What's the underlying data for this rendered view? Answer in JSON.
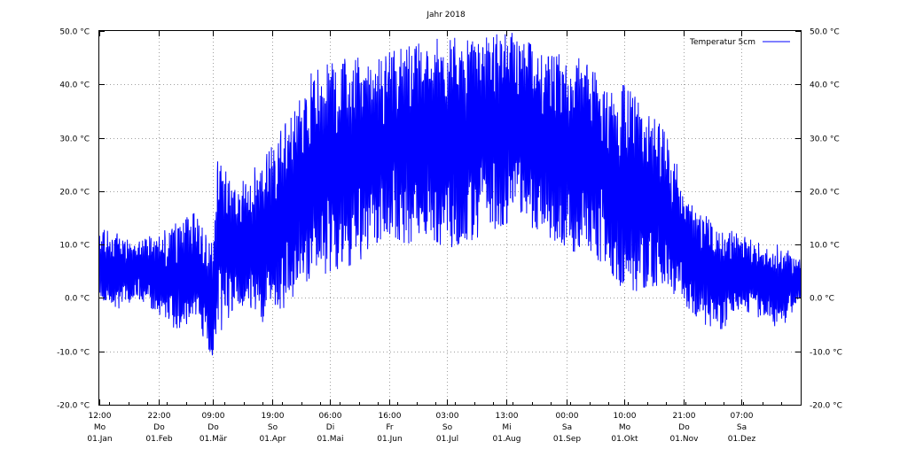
{
  "chart_data": {
    "type": "line",
    "title": "Jahr 2018",
    "ylim": [
      -20,
      50
    ],
    "y_ticks": [
      {
        "value": 50,
        "label": "50.0 °C"
      },
      {
        "value": 40,
        "label": "40.0 °C"
      },
      {
        "value": 30,
        "label": "30.0 °C"
      },
      {
        "value": 20,
        "label": "20.0 °C"
      },
      {
        "value": 10,
        "label": "10.0 °C"
      },
      {
        "value": 0,
        "label": "0.0 °C"
      },
      {
        "value": -10,
        "label": "-10.0 °C"
      },
      {
        "value": -20,
        "label": "-20.0 °C"
      }
    ],
    "x_range_days": [
      0,
      365
    ],
    "x_ticks": [
      {
        "day": 0.0,
        "time": "12:00",
        "weekday": "Mo",
        "date": "01.Jan"
      },
      {
        "day": 31.0,
        "time": "22:00",
        "weekday": "Do",
        "date": "01.Feb"
      },
      {
        "day": 59.0,
        "time": "09:00",
        "weekday": "Do",
        "date": "01.Mär"
      },
      {
        "day": 90.0,
        "time": "19:00",
        "weekday": "So",
        "date": "01.Apr"
      },
      {
        "day": 120.0,
        "time": "06:00",
        "weekday": "Di",
        "date": "01.Mai"
      },
      {
        "day": 151.0,
        "time": "16:00",
        "weekday": "Fr",
        "date": "01.Jun"
      },
      {
        "day": 181.0,
        "time": "03:00",
        "weekday": "So",
        "date": "01.Jul"
      },
      {
        "day": 212.0,
        "time": "13:00",
        "weekday": "Mi",
        "date": "01.Aug"
      },
      {
        "day": 243.0,
        "time": "00:00",
        "weekday": "Sa",
        "date": "01.Sep"
      },
      {
        "day": 273.0,
        "time": "10:00",
        "weekday": "Mo",
        "date": "01.Okt"
      },
      {
        "day": 304.0,
        "time": "21:00",
        "weekday": "Do",
        "date": "01.Nov"
      },
      {
        "day": 334.0,
        "time": "07:00",
        "weekday": "Sa",
        "date": "01.Dez"
      }
    ],
    "grid": true,
    "legend_position": "top-right",
    "series": [
      {
        "name": "Temperatur 5cm",
        "color": "#0000ff",
        "envelope": [
          {
            "day": 0,
            "min": 0,
            "max": 13
          },
          {
            "day": 10,
            "min": -2,
            "max": 12
          },
          {
            "day": 20,
            "min": 0,
            "max": 11
          },
          {
            "day": 31,
            "min": -3,
            "max": 12
          },
          {
            "day": 40,
            "min": -6,
            "max": 14
          },
          {
            "day": 50,
            "min": -4,
            "max": 16
          },
          {
            "day": 55,
            "min": -8,
            "max": 12
          },
          {
            "day": 59,
            "min": -12,
            "max": 10
          },
          {
            "day": 62,
            "min": -7,
            "max": 28
          },
          {
            "day": 70,
            "min": -2,
            "max": 20
          },
          {
            "day": 80,
            "min": -4,
            "max": 24
          },
          {
            "day": 90,
            "min": -5,
            "max": 30
          },
          {
            "day": 100,
            "min": 0,
            "max": 34
          },
          {
            "day": 110,
            "min": 3,
            "max": 42
          },
          {
            "day": 120,
            "min": 5,
            "max": 44
          },
          {
            "day": 130,
            "min": 6,
            "max": 45
          },
          {
            "day": 140,
            "min": 8,
            "max": 45
          },
          {
            "day": 151,
            "min": 12,
            "max": 46
          },
          {
            "day": 160,
            "min": 10,
            "max": 47
          },
          {
            "day": 170,
            "min": 12,
            "max": 48
          },
          {
            "day": 181,
            "min": 9,
            "max": 49
          },
          {
            "day": 195,
            "min": 11,
            "max": 48
          },
          {
            "day": 212,
            "min": 14,
            "max": 50
          },
          {
            "day": 220,
            "min": 14,
            "max": 49
          },
          {
            "day": 232,
            "min": 12,
            "max": 45
          },
          {
            "day": 243,
            "min": 9,
            "max": 46
          },
          {
            "day": 255,
            "min": 8,
            "max": 44
          },
          {
            "day": 265,
            "min": 6,
            "max": 38
          },
          {
            "day": 273,
            "min": 0,
            "max": 40
          },
          {
            "day": 283,
            "min": 2,
            "max": 36
          },
          {
            "day": 293,
            "min": 1,
            "max": 32
          },
          {
            "day": 300,
            "min": 0,
            "max": 26
          },
          {
            "day": 304,
            "min": -1,
            "max": 19
          },
          {
            "day": 315,
            "min": -5,
            "max": 16
          },
          {
            "day": 325,
            "min": -6,
            "max": 13
          },
          {
            "day": 334,
            "min": -2,
            "max": 12
          },
          {
            "day": 345,
            "min": -4,
            "max": 10
          },
          {
            "day": 355,
            "min": -6,
            "max": 10
          },
          {
            "day": 365,
            "min": 0,
            "max": 7
          }
        ]
      }
    ]
  }
}
